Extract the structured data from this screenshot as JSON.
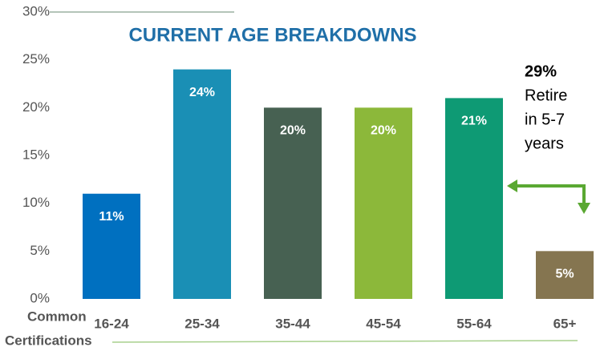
{
  "chart_data": {
    "type": "bar",
    "title": "CURRENT AGE BREAKDOWNS",
    "categories": [
      "16-24",
      "25-34",
      "35-44",
      "45-54",
      "55-64",
      "65+"
    ],
    "values": [
      11,
      24,
      20,
      20,
      21,
      5
    ],
    "value_labels": [
      "11%",
      "24%",
      "20%",
      "20%",
      "21%",
      "5%"
    ],
    "colors": [
      "#0070c0",
      "#1a8fb5",
      "#476152",
      "#8cb83a",
      "#0e9a74",
      "#857550"
    ],
    "ylim": [
      0,
      30
    ],
    "yticks": [
      {
        "value": 0,
        "label": "0%"
      },
      {
        "value": 5,
        "label": "5%"
      },
      {
        "value": 10,
        "label": "10%"
      },
      {
        "value": 15,
        "label": "15%"
      },
      {
        "value": 20,
        "label": "20%"
      },
      {
        "value": 25,
        "label": "25%"
      },
      {
        "value": 30,
        "label": "30%"
      }
    ],
    "grid": false,
    "annotations": [
      "29%",
      "Retire",
      "in 5-7",
      "years"
    ],
    "footer": [
      "Common",
      "Certifications"
    ]
  }
}
